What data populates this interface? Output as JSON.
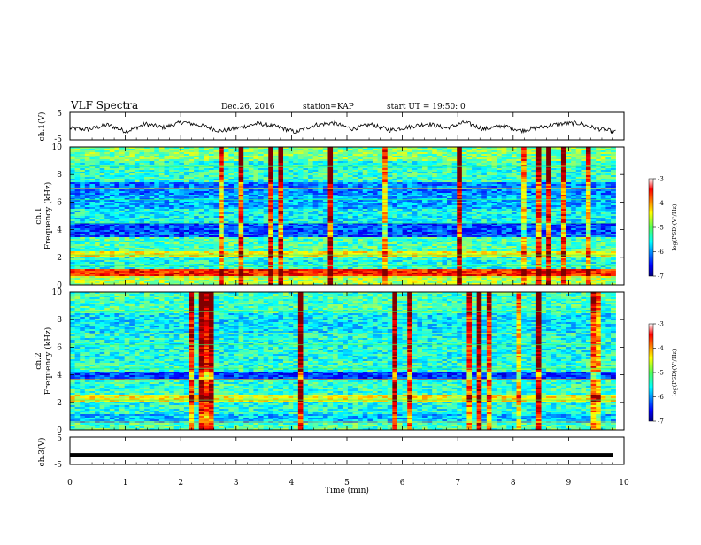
{
  "header": {
    "title": "VLF Spectra",
    "date": "Dec.26, 2016",
    "station": "station=KAP",
    "start": "start UT =  19:50: 0"
  },
  "chart_data": [
    {
      "type": "line",
      "ylabel": "ch.1(V)",
      "ylim": [
        -5,
        5
      ],
      "yticks": [
        "5",
        "-5"
      ],
      "xlim": [
        0,
        10
      ],
      "series": [
        {
          "values": [
            -0.8,
            -1.2,
            0.5,
            -2.0,
            0.8,
            -0.5,
            1.5,
            0.2,
            -1.8,
            -0.6,
            1.0,
            -0.2,
            -2.2,
            0.4,
            1.2,
            -1.0,
            0.6,
            -1.5,
            -0.3,
            0.9,
            -0.7,
            1.4,
            -1.1,
            0.2,
            -1.6,
            -0.4,
            0.8,
            1.1,
            -0.9,
            -2.1
          ]
        }
      ]
    },
    {
      "type": "heatmap",
      "ylabel": "ch.1",
      "ylabel2": "Frequency (kHz)",
      "ylim": [
        0,
        10
      ],
      "yticks": [
        "0",
        "2",
        "4",
        "6",
        "8",
        "10"
      ],
      "xlim": [
        0,
        10
      ],
      "colorbar": {
        "label": "log(PSD)(V²/Hz)",
        "min": -7,
        "max": -3,
        "ticks": [
          "-3",
          "-4",
          "-5",
          "-6",
          "-7"
        ]
      }
    },
    {
      "type": "heatmap",
      "ylabel": "ch.2",
      "ylabel2": "Frequency (kHz)",
      "ylim": [
        0,
        10
      ],
      "yticks": [
        "0",
        "2",
        "4",
        "6",
        "8",
        "10"
      ],
      "xlim": [
        0,
        10
      ],
      "colorbar": {
        "label": "log(PSD)(V²/Hz)",
        "min": -7,
        "max": -3,
        "ticks": [
          "-3",
          "-4",
          "-5",
          "-6",
          "-7"
        ]
      }
    },
    {
      "type": "line",
      "ylabel": "ch.3(V)",
      "ylim": [
        -5,
        5
      ],
      "yticks": [
        "5",
        "-5"
      ],
      "xlim": [
        0,
        10
      ],
      "series": [
        {
          "values": [
            -1.5,
            -1.5
          ]
        }
      ]
    }
  ],
  "xaxis": {
    "label": "Time (min)",
    "ticks": [
      "0",
      "1",
      "2",
      "3",
      "4",
      "5",
      "6",
      "7",
      "8",
      "9",
      "10"
    ]
  }
}
